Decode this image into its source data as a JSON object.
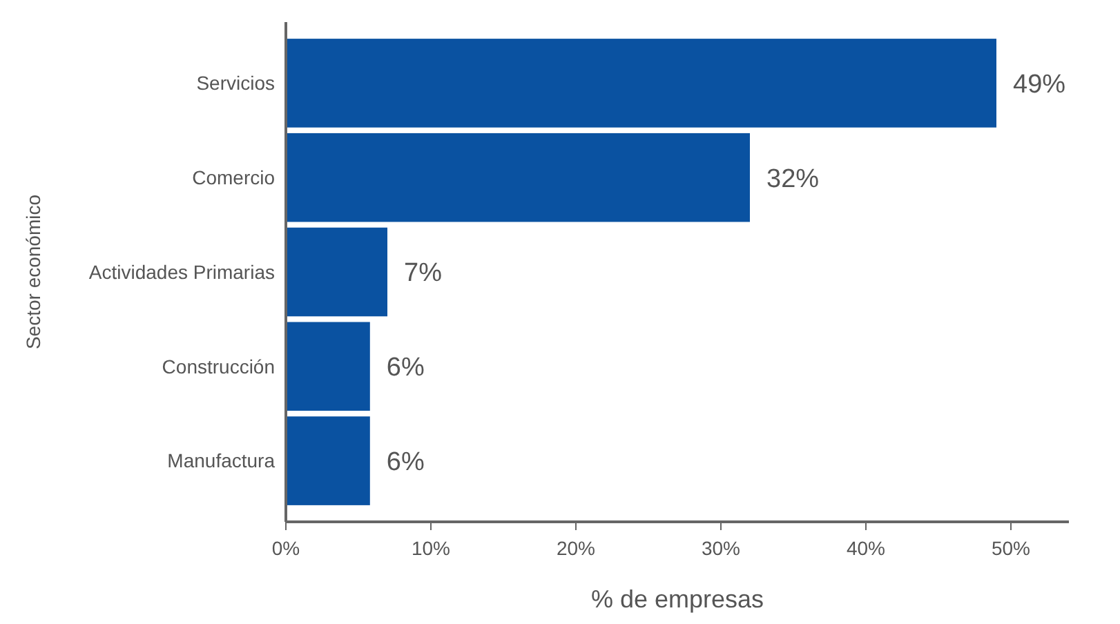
{
  "chart_data": {
    "type": "bar",
    "orientation": "horizontal",
    "xlabel": "% de empresas",
    "ylabel": "Sector económico",
    "categories": [
      "Servicios",
      "Comercio",
      "Actividades Primarias",
      "Construcción",
      "Manufactura"
    ],
    "values": [
      49,
      32,
      7,
      5.8,
      5.8
    ],
    "color": "#0a52a1",
    "value_labels": [
      "49%",
      "32%",
      "7%",
      "6%",
      "6%"
    ],
    "xlim": [
      0,
      54
    ],
    "xticks": [
      {
        "value": 0,
        "label": "0%"
      },
      {
        "value": 10,
        "label": "10%"
      },
      {
        "value": 20,
        "label": "20%"
      },
      {
        "value": 30,
        "label": "30%"
      },
      {
        "value": 40,
        "label": "40%"
      },
      {
        "value": 50,
        "label": "50%"
      }
    ],
    "grid": false
  }
}
